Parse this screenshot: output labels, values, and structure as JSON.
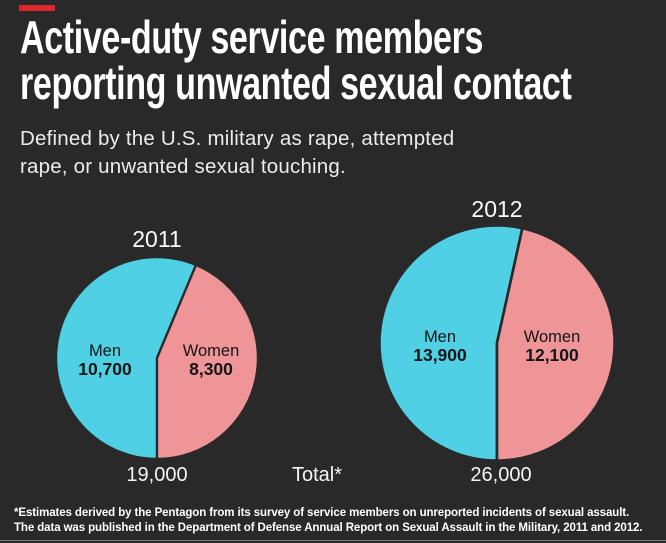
{
  "page": {
    "background": "#2a2929",
    "accent_color": "#e0242b"
  },
  "header": {
    "title_line1": "Active-duty service members",
    "title_line2": "reporting unwanted sexual contact",
    "subtitle_line1": "Defined by the U.S. military as rape, attempted",
    "subtitle_line2": "rape, or unwanted sexual touching."
  },
  "chart_data": {
    "type": "pie",
    "title": "Active-duty service members reporting unwanted sexual contact",
    "subtitle": "Defined by the U.S. military as rape, attempted rape, or unwanted sexual touching.",
    "colors": {
      "men": "#4fd0e5",
      "women": "#ef9598"
    },
    "slice_divider_color": "#2a2929",
    "total_caption": "Total*",
    "pies": [
      {
        "year": "2011",
        "total": 19000,
        "total_label": "19,000",
        "slices": [
          {
            "label": "Men",
            "value": 10700,
            "value_label": "10,700",
            "color_key": "men"
          },
          {
            "label": "Women",
            "value": 8300,
            "value_label": "8,300",
            "color_key": "women"
          }
        ]
      },
      {
        "year": "2012",
        "total": 26000,
        "total_label": "26,000",
        "slices": [
          {
            "label": "Men",
            "value": 13900,
            "value_label": "13,900",
            "color_key": "men"
          },
          {
            "label": "Women",
            "value": 12100,
            "value_label": "12,100",
            "color_key": "women"
          }
        ]
      }
    ]
  },
  "footnote": {
    "line1": "*Estimates derived by the Pentagon from its survey of service members on unreported incidents of sexual assault.",
    "line2": "The data was published in the Department of Defense Annual Report on Sexual Assault in the Military, 2011 and 2012."
  }
}
